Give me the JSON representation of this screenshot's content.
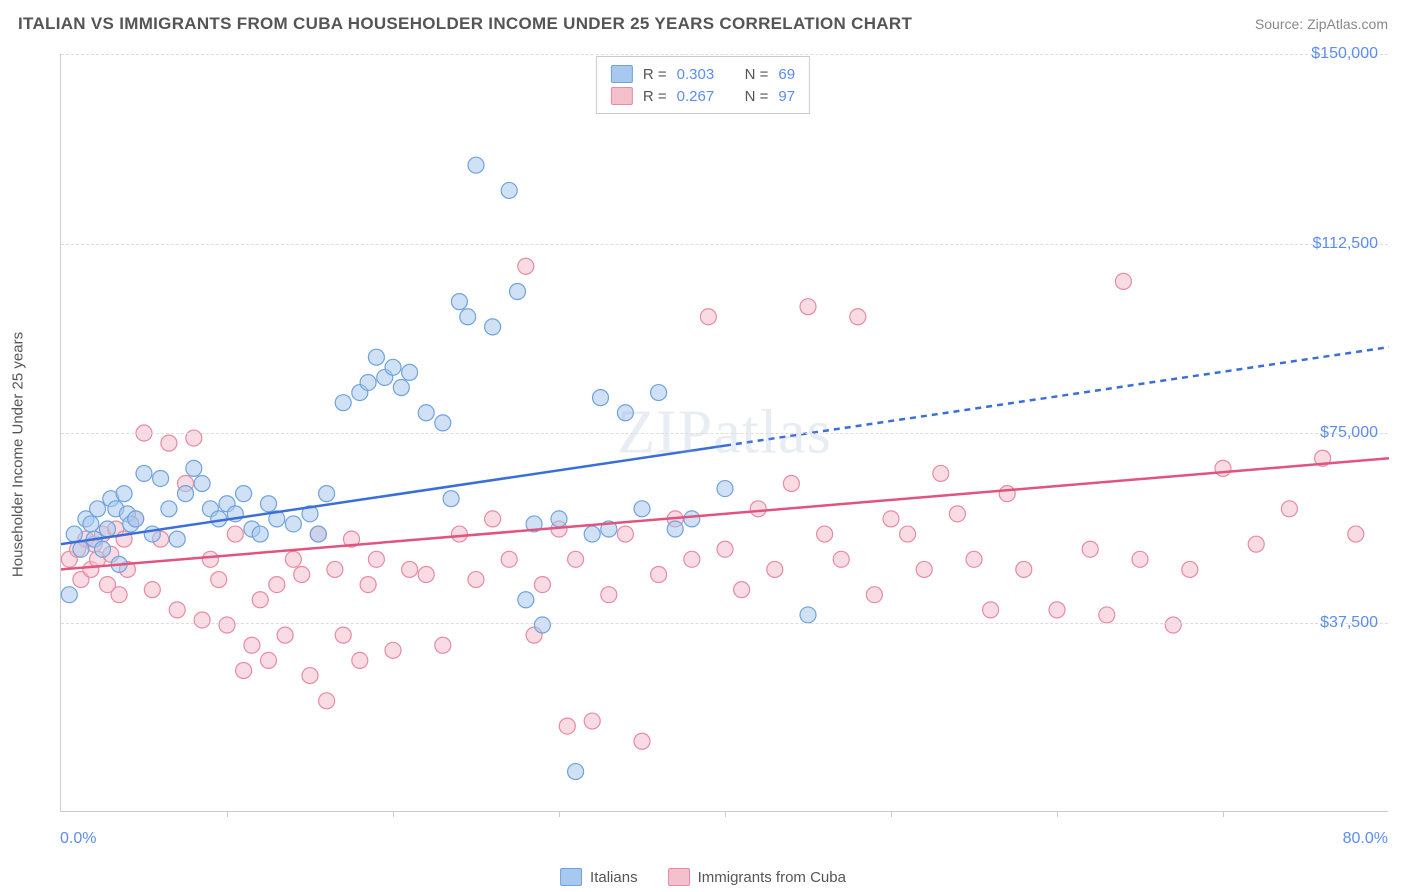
{
  "header": {
    "title": "ITALIAN VS IMMIGRANTS FROM CUBA HOUSEHOLDER INCOME UNDER 25 YEARS CORRELATION CHART",
    "source": "Source: ZipAtlas.com"
  },
  "chart": {
    "type": "scatter",
    "y_axis_title": "Householder Income Under 25 years",
    "x_min": 0.0,
    "x_max": 80.0,
    "x_min_label": "0.0%",
    "x_max_label": "80.0%",
    "x_tick_step": 10,
    "y_min": 0,
    "y_max": 150000,
    "y_ticks": [
      {
        "value": 37500,
        "label": "$37,500"
      },
      {
        "value": 75000,
        "label": "$75,000"
      },
      {
        "value": 112500,
        "label": "$112,500"
      },
      {
        "value": 150000,
        "label": "$150,000"
      }
    ],
    "background_color": "#ffffff",
    "grid_color": "#dddddd",
    "axis_color": "#cccccc",
    "text_color": "#555555",
    "value_color": "#5b8def",
    "marker_radius": 8,
    "marker_opacity": 0.55,
    "trend_line_width": 2.5,
    "series": [
      {
        "id": "italians",
        "label": "Italians",
        "marker_fill": "#a9c8ef",
        "marker_stroke": "#6fa3dd",
        "line_color": "#3a6fd8",
        "trend_dashed_after_x": 40,
        "R_label": "R =",
        "R": "0.303",
        "N_label": "N =",
        "N": "69",
        "trend": {
          "x1": 0,
          "y1": 53000,
          "x2": 80,
          "y2": 92000
        },
        "points": [
          [
            0.5,
            43000
          ],
          [
            0.8,
            55000
          ],
          [
            1.2,
            52000
          ],
          [
            1.5,
            58000
          ],
          [
            1.8,
            57000
          ],
          [
            2.0,
            54000
          ],
          [
            2.2,
            60000
          ],
          [
            2.5,
            52000
          ],
          [
            2.8,
            56000
          ],
          [
            3.0,
            62000
          ],
          [
            3.3,
            60000
          ],
          [
            3.5,
            49000
          ],
          [
            3.8,
            63000
          ],
          [
            4.0,
            59000
          ],
          [
            4.2,
            57000
          ],
          [
            4.5,
            58000
          ],
          [
            5.0,
            67000
          ],
          [
            5.5,
            55000
          ],
          [
            6.0,
            66000
          ],
          [
            6.5,
            60000
          ],
          [
            7.0,
            54000
          ],
          [
            7.5,
            63000
          ],
          [
            8.0,
            68000
          ],
          [
            8.5,
            65000
          ],
          [
            9.0,
            60000
          ],
          [
            9.5,
            58000
          ],
          [
            10.0,
            61000
          ],
          [
            10.5,
            59000
          ],
          [
            11.0,
            63000
          ],
          [
            11.5,
            56000
          ],
          [
            12.0,
            55000
          ],
          [
            12.5,
            61000
          ],
          [
            13.0,
            58000
          ],
          [
            14.0,
            57000
          ],
          [
            15.0,
            59000
          ],
          [
            15.5,
            55000
          ],
          [
            16.0,
            63000
          ],
          [
            17.0,
            81000
          ],
          [
            18.0,
            83000
          ],
          [
            18.5,
            85000
          ],
          [
            19.0,
            90000
          ],
          [
            19.5,
            86000
          ],
          [
            20.0,
            88000
          ],
          [
            20.5,
            84000
          ],
          [
            21.0,
            87000
          ],
          [
            22.0,
            79000
          ],
          [
            23.0,
            77000
          ],
          [
            24.0,
            101000
          ],
          [
            24.5,
            98000
          ],
          [
            25.0,
            128000
          ],
          [
            26.0,
            96000
          ],
          [
            27.0,
            123000
          ],
          [
            27.5,
            103000
          ],
          [
            28.0,
            42000
          ],
          [
            28.5,
            57000
          ],
          [
            29.0,
            37000
          ],
          [
            30.0,
            58000
          ],
          [
            31.0,
            8000
          ],
          [
            32.0,
            55000
          ],
          [
            32.5,
            82000
          ],
          [
            33.0,
            56000
          ],
          [
            34.0,
            79000
          ],
          [
            35.0,
            60000
          ],
          [
            36.0,
            83000
          ],
          [
            37.0,
            56000
          ],
          [
            38.0,
            58000
          ],
          [
            40.0,
            64000
          ],
          [
            45.0,
            39000
          ],
          [
            23.5,
            62000
          ]
        ]
      },
      {
        "id": "cuba",
        "label": "Immigrants from Cuba",
        "marker_fill": "#f4c0cc",
        "marker_stroke": "#e88aa3",
        "line_color": "#e0547d",
        "trend_dashed_after_x": 80,
        "R_label": "R =",
        "R": "0.267",
        "N_label": "N =",
        "N": "97",
        "trend": {
          "x1": 0,
          "y1": 48000,
          "x2": 80,
          "y2": 70000
        },
        "points": [
          [
            0.5,
            50000
          ],
          [
            1.0,
            52000
          ],
          [
            1.2,
            46000
          ],
          [
            1.5,
            54000
          ],
          [
            1.8,
            48000
          ],
          [
            2.0,
            53000
          ],
          [
            2.2,
            50000
          ],
          [
            2.5,
            55000
          ],
          [
            2.8,
            45000
          ],
          [
            3.0,
            51000
          ],
          [
            3.3,
            56000
          ],
          [
            3.5,
            43000
          ],
          [
            3.8,
            54000
          ],
          [
            4.0,
            48000
          ],
          [
            4.5,
            58000
          ],
          [
            5.0,
            75000
          ],
          [
            5.5,
            44000
          ],
          [
            6.0,
            54000
          ],
          [
            6.5,
            73000
          ],
          [
            7.0,
            40000
          ],
          [
            7.5,
            65000
          ],
          [
            8.0,
            74000
          ],
          [
            8.5,
            38000
          ],
          [
            9.0,
            50000
          ],
          [
            9.5,
            46000
          ],
          [
            10.0,
            37000
          ],
          [
            10.5,
            55000
          ],
          [
            11.0,
            28000
          ],
          [
            11.5,
            33000
          ],
          [
            12.0,
            42000
          ],
          [
            12.5,
            30000
          ],
          [
            13.0,
            45000
          ],
          [
            13.5,
            35000
          ],
          [
            14.0,
            50000
          ],
          [
            14.5,
            47000
          ],
          [
            15.0,
            27000
          ],
          [
            15.5,
            55000
          ],
          [
            16.0,
            22000
          ],
          [
            16.5,
            48000
          ],
          [
            17.0,
            35000
          ],
          [
            17.5,
            54000
          ],
          [
            18.0,
            30000
          ],
          [
            18.5,
            45000
          ],
          [
            19.0,
            50000
          ],
          [
            20.0,
            32000
          ],
          [
            21.0,
            48000
          ],
          [
            22.0,
            47000
          ],
          [
            23.0,
            33000
          ],
          [
            24.0,
            55000
          ],
          [
            25.0,
            46000
          ],
          [
            26.0,
            58000
          ],
          [
            27.0,
            50000
          ],
          [
            28.0,
            108000
          ],
          [
            28.5,
            35000
          ],
          [
            29.0,
            45000
          ],
          [
            30.0,
            56000
          ],
          [
            30.5,
            17000
          ],
          [
            31.0,
            50000
          ],
          [
            32.0,
            18000
          ],
          [
            33.0,
            43000
          ],
          [
            34.0,
            55000
          ],
          [
            35.0,
            14000
          ],
          [
            36.0,
            47000
          ],
          [
            37.0,
            58000
          ],
          [
            38.0,
            50000
          ],
          [
            39.0,
            98000
          ],
          [
            40.0,
            52000
          ],
          [
            41.0,
            44000
          ],
          [
            42.0,
            60000
          ],
          [
            43.0,
            48000
          ],
          [
            44.0,
            65000
          ],
          [
            45.0,
            100000
          ],
          [
            46.0,
            55000
          ],
          [
            47.0,
            50000
          ],
          [
            48.0,
            98000
          ],
          [
            49.0,
            43000
          ],
          [
            50.0,
            58000
          ],
          [
            51.0,
            55000
          ],
          [
            52.0,
            48000
          ],
          [
            53.0,
            67000
          ],
          [
            54.0,
            59000
          ],
          [
            55.0,
            50000
          ],
          [
            56.0,
            40000
          ],
          [
            57.0,
            63000
          ],
          [
            58.0,
            48000
          ],
          [
            60.0,
            40000
          ],
          [
            62.0,
            52000
          ],
          [
            64.0,
            105000
          ],
          [
            65.0,
            50000
          ],
          [
            67.0,
            37000
          ],
          [
            68.0,
            48000
          ],
          [
            70.0,
            68000
          ],
          [
            72.0,
            53000
          ],
          [
            74.0,
            60000
          ],
          [
            76.0,
            70000
          ],
          [
            78.0,
            55000
          ],
          [
            63.0,
            39000
          ]
        ]
      }
    ],
    "watermark": "ZIPatlas"
  },
  "legend": {
    "series1": "Italians",
    "series2": "Immigrants from Cuba"
  }
}
